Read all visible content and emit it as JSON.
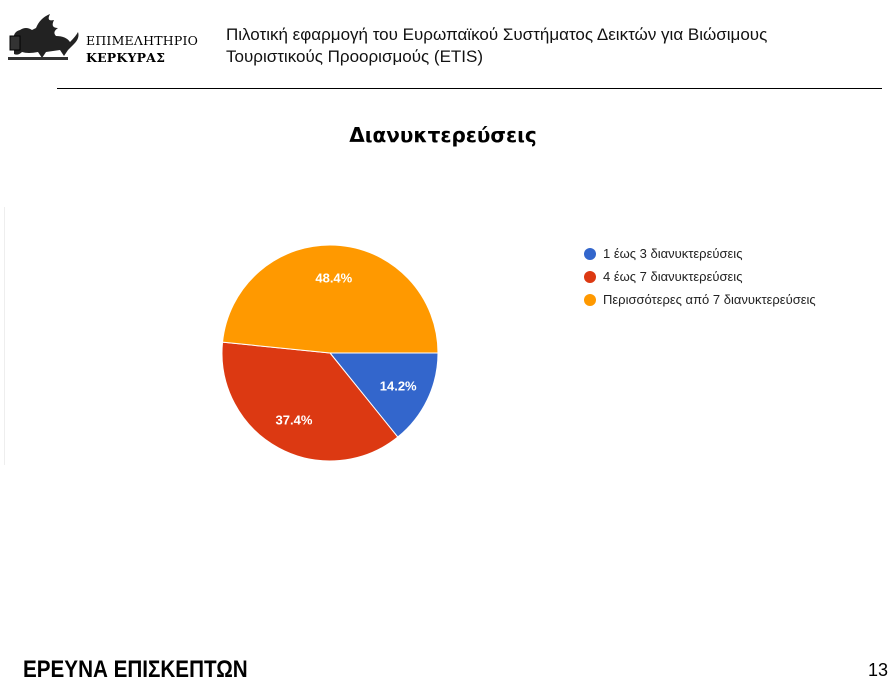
{
  "header": {
    "logo": {
      "icon": "winged-lion-icon",
      "line1": "ΕΠΙΜΕΛΗΤΗΡΙΟ",
      "line2": "ΚΕΡΚΥΡΑΣ"
    },
    "title_line1": "Πιλοτική εφαρμογή του Ευρωπαϊκού Συστήματος Δεικτών για Βιώσιμους",
    "title_line2": "Τουριστικούς Προορισμούς (ETIS)"
  },
  "slide": {
    "title": "Διανυκτερεύσεις"
  },
  "chart_data": {
    "type": "pie",
    "title": "Διανυκτερεύσεις",
    "categories": [
      "1 έως 3 διανυκτερεύσεις",
      "4 έως 7 διανυκτερεύσεις",
      "Περισσότερες από 7 διανυκτερεύσεις"
    ],
    "values": [
      14.2,
      37.4,
      48.4
    ],
    "labels": [
      "14.2%",
      "37.4%",
      "48.4%"
    ],
    "colors": [
      "#3366cc",
      "#dc3912",
      "#ff9900"
    ],
    "legend_position": "right",
    "start_angle": "3 o'clock, clockwise"
  },
  "footer": {
    "section_title": "ΕΡΕΥΝΑ ΕΠΙΣΚΕΠΤΩΝ",
    "page_number": "13"
  }
}
